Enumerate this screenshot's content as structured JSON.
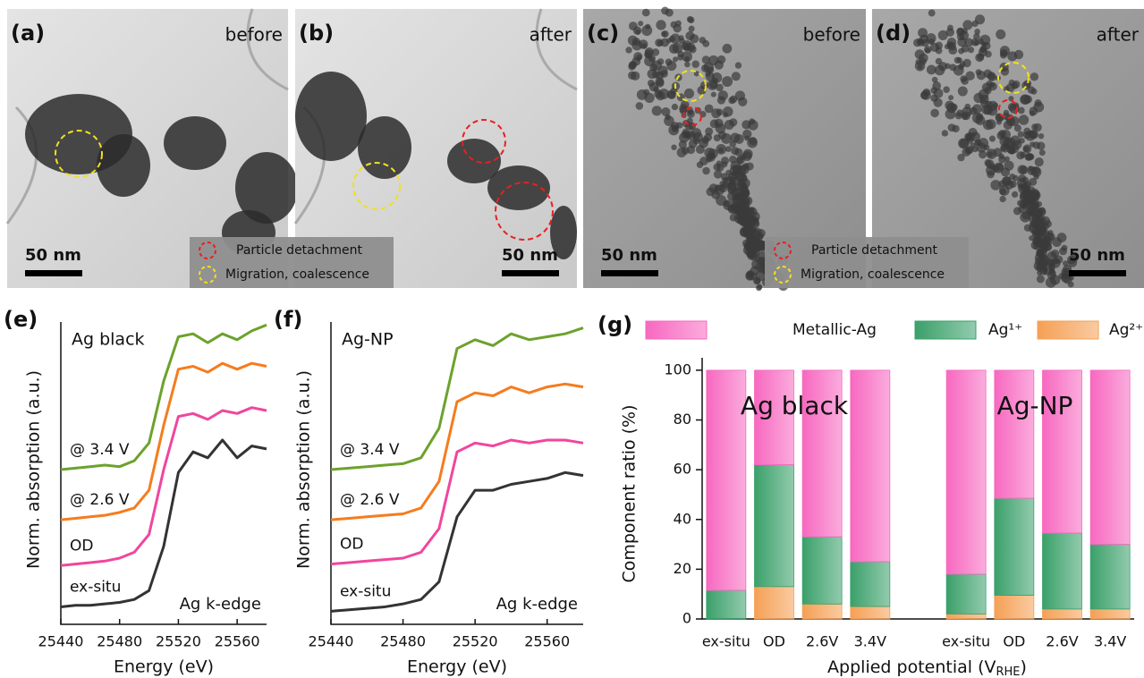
{
  "tem_panels": [
    {
      "label": "(a)",
      "condition": "before",
      "scale_bar": "50 nm"
    },
    {
      "label": "(b)",
      "condition": "after",
      "scale_bar": "50 nm"
    },
    {
      "label": "(c)",
      "condition": "before",
      "scale_bar": "50 nm"
    },
    {
      "label": "(d)",
      "condition": "after",
      "scale_bar": "50 nm"
    }
  ],
  "tem_legend": [
    "Particle detachment",
    "Migration, coalescence"
  ],
  "chart_data": [
    {
      "type": "line",
      "panel_label": "(e)",
      "sample": "Ag black",
      "edge": "Ag k-edge",
      "x_label": "Energy (eV)",
      "y_label": "Norm. absorption (a.u.)",
      "x": [
        25440,
        25450,
        25460,
        25470,
        25480,
        25490,
        25500,
        25510,
        25520,
        25530,
        25540,
        25550,
        25560,
        25570,
        25580
      ],
      "xlim": [
        25440,
        25580
      ],
      "xticks": [
        25440,
        25480,
        25520,
        25560
      ],
      "ylim": [
        0,
        10
      ],
      "series": [
        {
          "name": "ex-situ",
          "color": "#333333",
          "values": [
            0.35,
            0.4,
            0.4,
            0.45,
            0.5,
            0.6,
            0.9,
            2.4,
            4.9,
            5.6,
            5.4,
            6.0,
            5.4,
            5.8,
            5.7
          ]
        },
        {
          "name": "OD",
          "color": "#f0469e",
          "values": [
            1.75,
            1.8,
            1.85,
            1.9,
            2.0,
            2.2,
            2.8,
            5.0,
            6.8,
            6.9,
            6.7,
            7.0,
            6.9,
            7.1,
            7.0
          ]
        },
        {
          "name": "@ 2.6 V",
          "color": "#f57c1f",
          "values": [
            3.3,
            3.35,
            3.4,
            3.45,
            3.55,
            3.7,
            4.3,
            6.5,
            8.4,
            8.5,
            8.3,
            8.6,
            8.4,
            8.6,
            8.5
          ]
        },
        {
          "name": "@ 3.4 V",
          "color": "#6ca22c",
          "values": [
            5.0,
            5.05,
            5.1,
            5.15,
            5.1,
            5.3,
            5.9,
            8.0,
            9.5,
            9.6,
            9.3,
            9.6,
            9.4,
            9.7,
            9.9
          ]
        }
      ]
    },
    {
      "type": "line",
      "panel_label": "(f)",
      "sample": "Ag-NP",
      "edge": "Ag k-edge",
      "x_label": "Energy (eV)",
      "y_label": "Norm. absorption (a.u.)",
      "x": [
        25440,
        25450,
        25460,
        25470,
        25480,
        25490,
        25500,
        25510,
        25520,
        25530,
        25540,
        25550,
        25560,
        25570,
        25580
      ],
      "xlim": [
        25440,
        25580
      ],
      "xticks": [
        25440,
        25480,
        25520,
        25560
      ],
      "ylim": [
        0,
        10
      ],
      "series": [
        {
          "name": "ex-situ",
          "color": "#333333",
          "values": [
            0.2,
            0.25,
            0.3,
            0.35,
            0.45,
            0.6,
            1.2,
            3.4,
            4.3,
            4.3,
            4.5,
            4.6,
            4.7,
            4.9,
            4.8
          ]
        },
        {
          "name": "OD",
          "color": "#f0469e",
          "values": [
            1.8,
            1.85,
            1.9,
            1.95,
            2.0,
            2.2,
            3.0,
            5.6,
            5.9,
            5.8,
            6.0,
            5.9,
            6.0,
            6.0,
            5.9
          ]
        },
        {
          "name": "@ 2.6 V",
          "color": "#f57c1f",
          "values": [
            3.3,
            3.35,
            3.4,
            3.45,
            3.5,
            3.7,
            4.6,
            7.3,
            7.6,
            7.5,
            7.8,
            7.6,
            7.8,
            7.9,
            7.8
          ]
        },
        {
          "name": "@ 3.4 V",
          "color": "#6ca22c",
          "values": [
            5.0,
            5.05,
            5.1,
            5.15,
            5.2,
            5.4,
            6.4,
            9.1,
            9.4,
            9.2,
            9.6,
            9.4,
            9.5,
            9.6,
            9.8
          ]
        }
      ]
    },
    {
      "type": "bar",
      "panel_label": "(g)",
      "stacked": true,
      "y_label": "Component ratio (%)",
      "x_label": "Applied potential (V",
      "x_label_sub": "RHE",
      "x_label_end": ")",
      "annotations": [
        "Ag black",
        "Ag-NP"
      ],
      "categories": [
        "ex-situ",
        "OD",
        "2.6V",
        "3.4V",
        null,
        "ex-situ",
        "OD",
        "2.6V",
        "3.4V"
      ],
      "ylim": [
        0,
        105
      ],
      "yticks": [
        0,
        20,
        40,
        60,
        80,
        100
      ],
      "series": [
        {
          "name": "Metallic-Ag",
          "color": "#f768c0",
          "values": [
            88.5,
            38,
            67,
            77,
            null,
            82,
            51.5,
            65.5,
            70
          ]
        },
        {
          "name": "Ag¹⁺",
          "color": "#3aa06a",
          "values": [
            11.5,
            49,
            27,
            18,
            null,
            16,
            39,
            30.5,
            26
          ]
        },
        {
          "name": "Ag²⁺",
          "color": "#f5a055",
          "values": [
            0,
            13,
            6,
            5,
            null,
            2,
            9.5,
            4,
            4
          ]
        }
      ]
    }
  ]
}
